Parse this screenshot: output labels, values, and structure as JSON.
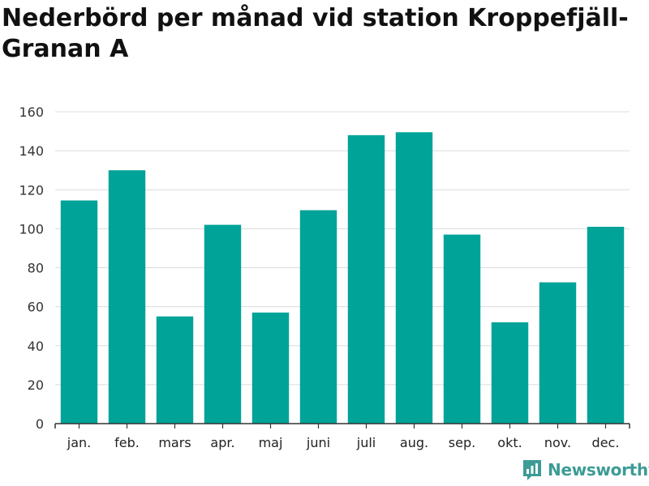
{
  "chart_data": {
    "type": "bar",
    "title": "Nederbörd per månad vid station Kroppefjäll-Granan A",
    "xlabel": "",
    "ylabel": "",
    "categories": [
      "jan.",
      "feb.",
      "mars",
      "apr.",
      "maj",
      "juni",
      "juli",
      "aug.",
      "sep.",
      "okt.",
      "nov.",
      "dec."
    ],
    "values": [
      114.5,
      130,
      55,
      102,
      57,
      109.5,
      148,
      149.5,
      97,
      52,
      72.5,
      101
    ],
    "ylim": [
      0,
      160
    ],
    "yticks": [
      0,
      20,
      40,
      60,
      80,
      100,
      120,
      140,
      160
    ],
    "grid": true,
    "bar_color": "#00a398"
  },
  "brand": {
    "name": "Newsworthy",
    "color": "#3d9b95"
  }
}
